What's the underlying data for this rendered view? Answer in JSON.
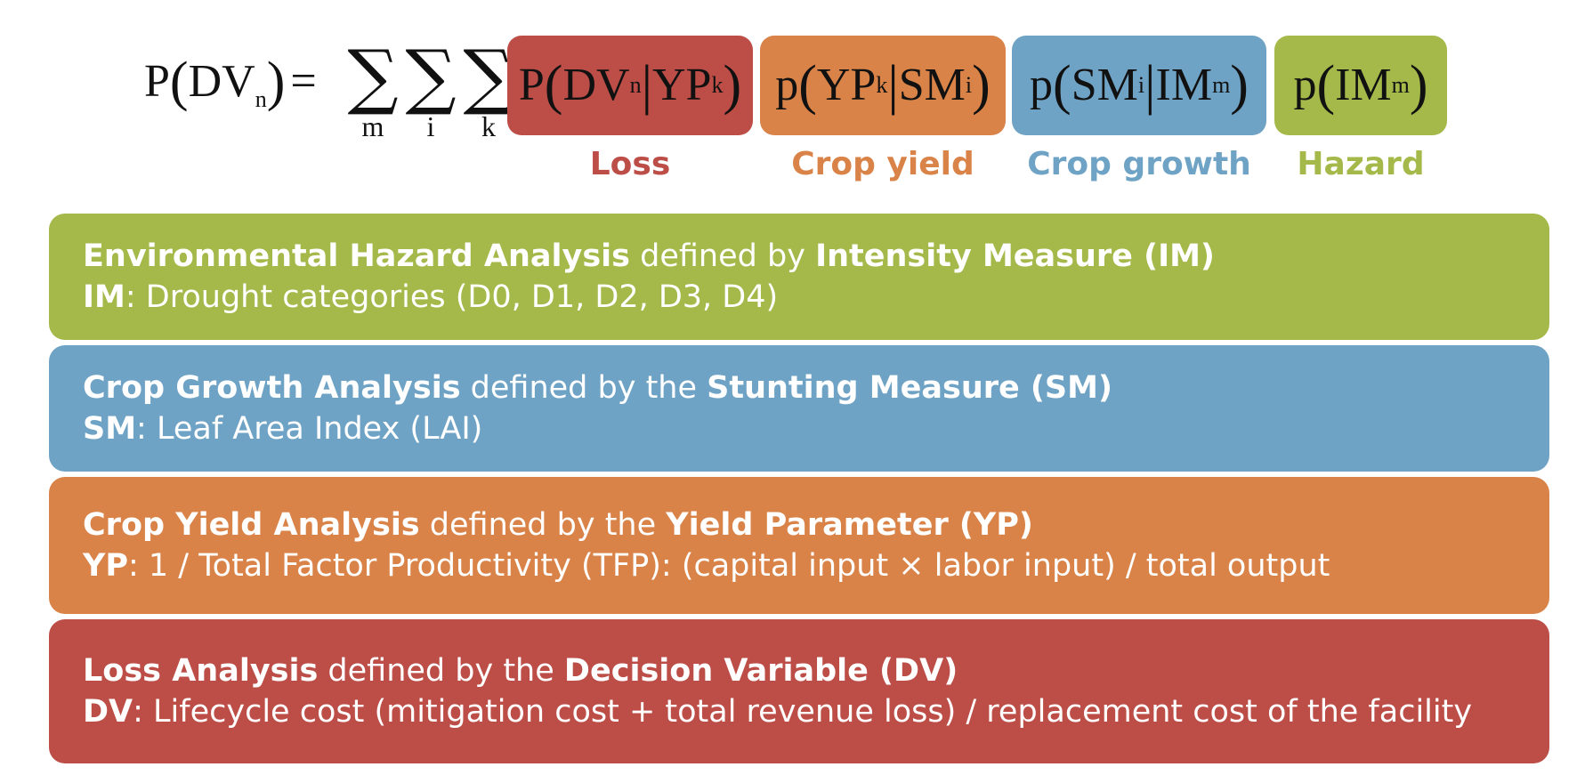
{
  "equation": {
    "lhs": {
      "p": "P",
      "dv": "DV",
      "dv_sub": "n",
      "equals": "="
    },
    "sums": [
      {
        "symbol": "∑",
        "index": "m"
      },
      {
        "symbol": "∑",
        "index": "i"
      },
      {
        "symbol": "∑",
        "index": "k"
      }
    ],
    "terms": [
      {
        "p": "P",
        "a": "DV",
        "a_sub": "n",
        "bar": "|",
        "b": "YP",
        "b_sub": "k",
        "label": "Loss",
        "color": "#BC4E47",
        "label_color": "#BC4E47"
      },
      {
        "p": "p",
        "a": "YP",
        "a_sub": "k",
        "bar": "|",
        "b": "SM",
        "b_sub": "i",
        "label": "Crop yield",
        "color": "#D98348",
        "label_color": "#D98348"
      },
      {
        "p": "p",
        "a": "SM",
        "a_sub": "i",
        "bar": "|",
        "b": "IM",
        "b_sub": "m",
        "label": "Crop growth",
        "color": "#6FA3C5",
        "label_color": "#6FA3C5"
      },
      {
        "p": "p",
        "a": "IM",
        "a_sub": "m",
        "label": "Hazard",
        "color": "#A5B84A",
        "label_color": "#A5B84A"
      }
    ]
  },
  "bands": [
    {
      "color": "#A5B84A",
      "title_bold": "Environmental Hazard Analysis",
      "title_mid": " defined by ",
      "measure_bold": "Intensity Measure (IM)",
      "abbr": "IM",
      "desc": ": Drought categories (D0, D1, D2, D3, D4)"
    },
    {
      "color": "#6FA3C5",
      "title_bold": "Crop Growth Analysis",
      "title_mid": " defined by the ",
      "measure_bold": "Stunting Measure (SM)",
      "abbr": "SM",
      "desc": ": Leaf Area Index (LAI)"
    },
    {
      "color": "#D98348",
      "title_bold": "Crop Yield Analysis",
      "title_mid": " defined by the ",
      "measure_bold": "Yield Parameter (YP)",
      "abbr": "YP",
      "desc": ": 1 / Total Factor Productivity (TFP): (capital input × labor input) / total output"
    },
    {
      "color": "#BC4E47",
      "title_bold": "Loss Analysis",
      "title_mid": " defined by the ",
      "measure_bold": "Decision Variable (DV)",
      "abbr": "DV",
      "desc": ": Lifecycle cost (mitigation cost + total revenue loss) / replacement cost of the facility"
    }
  ]
}
